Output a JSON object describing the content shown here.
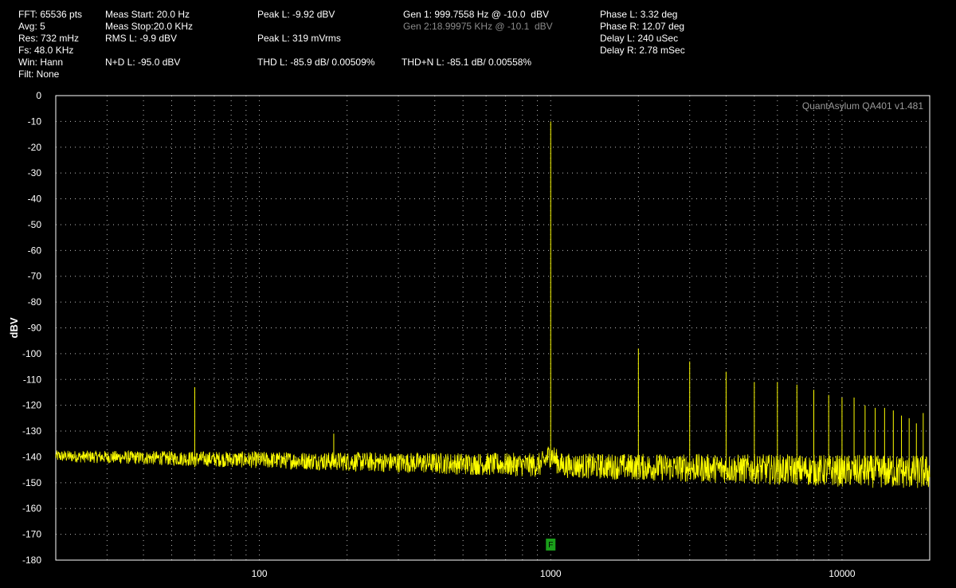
{
  "readouts": {
    "fft": "FFT: 65536 pts",
    "avg": "Avg: 5",
    "res": "Res: 732 mHz",
    "fs": "Fs: 48.0 KHz",
    "win": "Win: Hann",
    "filt": "Filt: None",
    "meas_start": "Meas Start: 20.0 Hz",
    "meas_stop": "Meas Stop:20.0 KHz",
    "rms_l": "RMS L: -9.9 dBV",
    "nd_l": "N+D L: -95.0 dBV",
    "peak_l_dbv": "Peak L: -9.92 dBV",
    "peak_l_mv": "Peak L: 319 mVrms",
    "thd_l": "THD L: -85.9 dB/ 0.00509%",
    "gen1": "Gen 1: 999.7558 Hz @ -10.0  dBV",
    "gen2": "Gen 2:18.99975 KHz @ -10.1  dBV",
    "thdn_l": "THD+N L: -85.1 dB/ 0.00558%",
    "phase_l": "Phase L: 3.32 deg",
    "phase_r": "Phase R: 12.07 deg",
    "delay_l": "Delay L: 240 uSec",
    "delay_r": "Delay R: 2.78 mSec"
  },
  "brand_label": "QuantAsylum QA401 v1.481",
  "marker_label": "F",
  "chart_data": {
    "type": "line",
    "title": "",
    "xlabel": "",
    "ylabel": "dBV",
    "x_scale": "log",
    "xlim": [
      20,
      20000
    ],
    "ylim": [
      -180,
      0
    ],
    "x_ticks": [
      100,
      1000,
      10000
    ],
    "x_tick_labels": [
      "100",
      "1000",
      "10000"
    ],
    "y_ticks": [
      0,
      -10,
      -20,
      -30,
      -40,
      -50,
      -60,
      -70,
      -80,
      -90,
      -100,
      -110,
      -120,
      -130,
      -140,
      -150,
      -160,
      -170,
      -180
    ],
    "y_tick_labels": [
      "0",
      "-10",
      "-20",
      "-30",
      "-40",
      "-50",
      "-60",
      "-70",
      "-80",
      "-90",
      "-100",
      "-110",
      "-120",
      "-130",
      "-140",
      "-150",
      "-160",
      "-170",
      "-180"
    ],
    "grid": true,
    "noise_floor_dbv": -146,
    "series": [
      {
        "color": "#ffff00",
        "fundamental": {
          "freq_hz": 1000,
          "level_dbv": -10
        },
        "spurs": [
          {
            "freq_hz": 60,
            "level_dbv": -113
          },
          {
            "freq_hz": 180,
            "level_dbv": -131
          }
        ],
        "harmonics": [
          {
            "freq_hz": 2000,
            "level_dbv": -98
          },
          {
            "freq_hz": 3000,
            "level_dbv": -103
          },
          {
            "freq_hz": 4000,
            "level_dbv": -107
          },
          {
            "freq_hz": 5000,
            "level_dbv": -111
          },
          {
            "freq_hz": 6000,
            "level_dbv": -111
          },
          {
            "freq_hz": 7000,
            "level_dbv": -112
          },
          {
            "freq_hz": 8000,
            "level_dbv": -114
          },
          {
            "freq_hz": 9000,
            "level_dbv": -116
          },
          {
            "freq_hz": 10000,
            "level_dbv": -117
          },
          {
            "freq_hz": 11000,
            "level_dbv": -117
          },
          {
            "freq_hz": 12000,
            "level_dbv": -120
          },
          {
            "freq_hz": 13000,
            "level_dbv": -121
          },
          {
            "freq_hz": 14000,
            "level_dbv": -121
          },
          {
            "freq_hz": 15000,
            "level_dbv": -122
          },
          {
            "freq_hz": 16000,
            "level_dbv": -124
          },
          {
            "freq_hz": 17000,
            "level_dbv": -125
          },
          {
            "freq_hz": 18000,
            "level_dbv": -127
          },
          {
            "freq_hz": 19000,
            "level_dbv": -123
          }
        ]
      }
    ],
    "marker": {
      "freq_hz": 1000,
      "color": "#1a9e1a"
    }
  }
}
